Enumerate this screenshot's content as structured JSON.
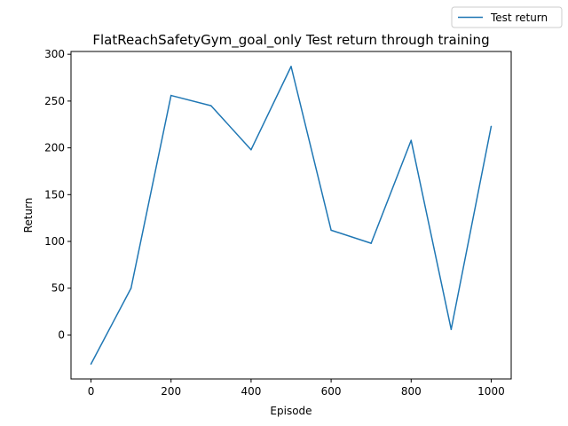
{
  "chart_data": {
    "type": "line",
    "title": "FlatReachSafetyGym_goal_only Test return through training",
    "xlabel": "Episode",
    "ylabel": "Return",
    "xlim": [
      -50,
      1050
    ],
    "ylim": [
      -47,
      303
    ],
    "xticks": [
      0,
      200,
      400,
      600,
      800,
      1000
    ],
    "yticks": [
      0,
      50,
      100,
      150,
      200,
      250,
      300
    ],
    "grid": false,
    "legend": {
      "placement": "figure-top-right",
      "entries": [
        "Test return"
      ]
    },
    "series": [
      {
        "name": "Test return",
        "color": "#1f77b4",
        "x": [
          0,
          100,
          200,
          300,
          400,
          500,
          600,
          700,
          800,
          900,
          1000
        ],
        "y": [
          -31,
          50,
          256,
          245,
          198,
          287,
          112,
          98,
          208,
          6,
          223
        ]
      }
    ]
  }
}
